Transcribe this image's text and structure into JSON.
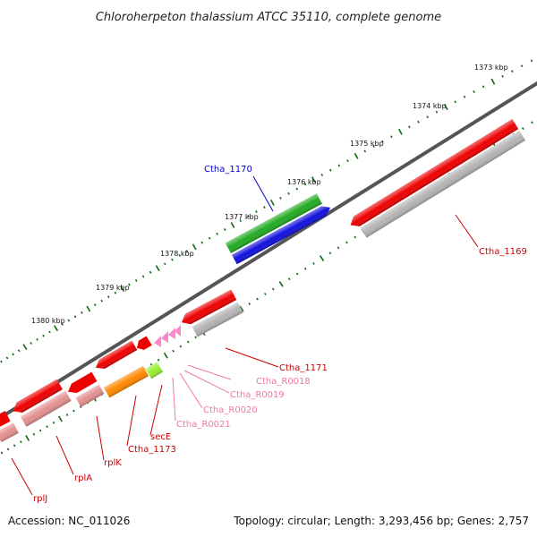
{
  "title": "Chloroherpeton thalassium ATCC 35110, complete genome",
  "footer": {
    "accession": "Accession: NC_011026",
    "summary": "Topology: circular; Length: 3,293,456 bp; Genes: 2,757"
  },
  "ticks": [
    "1373 kbp",
    "1374 kbp",
    "1375 kbp",
    "1376 kbp",
    "1377 kbp",
    "1378 kbp",
    "1379 kbp",
    "1380 kbp"
  ],
  "gene_labels": {
    "cth1170": "Ctha_1170",
    "cth1169": "Ctha_1169",
    "cth1171": "Ctha_1171",
    "r0018": "Ctha_R0018",
    "r0019": "Ctha_R0019",
    "r0020": "Ctha_R0020",
    "r0021": "Ctha_R0021",
    "secE": "secE",
    "cth1173": "Ctha_1173",
    "rplK": "rplK",
    "rplA": "rplA",
    "rplJ": "rplJ"
  },
  "colors": {
    "cds": "#ee0000",
    "gene": "#b4b4b4",
    "highlight_cds": "#22aa22",
    "highlight_gene": "#1111dd",
    "trna": "#ff88cc",
    "orange": "#ff8800",
    "lime": "#99ee33",
    "label_red": "#cc0000",
    "label_blue": "#0000cc",
    "label_pink": "#ee77aa",
    "tick": "#116611"
  }
}
